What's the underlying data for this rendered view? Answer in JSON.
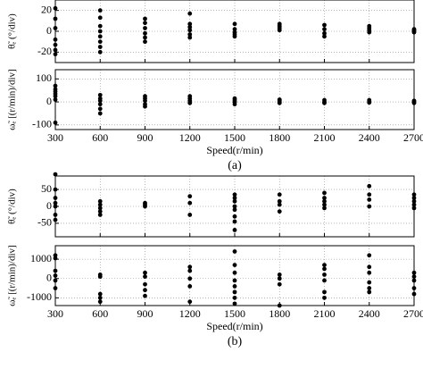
{
  "chart_data": [
    {
      "type": "scatter",
      "ylabel": "θ̃ₑ (°/div)",
      "color": "#000000",
      "grid": true,
      "xlim": [
        300,
        2700
      ],
      "xticks": [
        300,
        600,
        900,
        1200,
        1500,
        1800,
        2100,
        2400,
        2700
      ],
      "ylim": [
        -30,
        30
      ],
      "yticks": [
        -20,
        0,
        20
      ],
      "x": [
        300,
        300,
        300,
        300,
        300,
        300,
        300,
        600,
        600,
        600,
        600,
        600,
        600,
        600,
        600,
        900,
        900,
        900,
        900,
        900,
        900,
        1200,
        1200,
        1200,
        1200,
        1200,
        1200,
        1500,
        1500,
        1500,
        1500,
        1500,
        1800,
        1800,
        1800,
        1800,
        2100,
        2100,
        2100,
        2100,
        2400,
        2400,
        2400,
        2400,
        2700,
        2700,
        2700,
        2700
      ],
      "values": [
        22,
        12,
        3,
        -8,
        -13,
        -18,
        -22,
        20,
        13,
        5,
        0,
        -5,
        -10,
        -15,
        -20,
        12,
        8,
        3,
        -2,
        -6,
        -10,
        17,
        7,
        4,
        1,
        -3,
        -6,
        7,
        2,
        -1,
        -3,
        -5,
        7,
        5,
        3,
        1,
        6,
        2,
        -2,
        -5,
        5,
        3,
        1,
        -1,
        2,
        1,
        0,
        -1
      ]
    },
    {
      "type": "scatter",
      "ylabel": "ω̃ₑ [(r/min)/div]",
      "xlabel": "Speed(r/min)",
      "caption": "(a)",
      "color": "#000000",
      "grid": true,
      "xlim": [
        300,
        2700
      ],
      "xticks": [
        300,
        600,
        900,
        1200,
        1500,
        1800,
        2100,
        2400,
        2700
      ],
      "ylim": [
        -120,
        140
      ],
      "yticks": [
        -100,
        0,
        100
      ],
      "x": [
        300,
        300,
        300,
        300,
        300,
        300,
        300,
        600,
        600,
        600,
        600,
        600,
        600,
        900,
        900,
        900,
        900,
        900,
        1200,
        1200,
        1200,
        1200,
        1500,
        1500,
        1500,
        1500,
        1800,
        1800,
        1800,
        1800,
        2100,
        2100,
        2100,
        2400,
        2400,
        2400,
        2700,
        2700,
        2700
      ],
      "values": [
        70,
        55,
        45,
        35,
        25,
        10,
        -90,
        30,
        15,
        5,
        -10,
        -30,
        -50,
        25,
        15,
        5,
        -10,
        -20,
        25,
        15,
        5,
        -5,
        15,
        8,
        0,
        -10,
        10,
        5,
        0,
        -5,
        8,
        0,
        -5,
        8,
        2,
        -3,
        5,
        0,
        -5
      ]
    },
    {
      "type": "scatter",
      "ylabel": "θ̃ₑ (°/div)",
      "color": "#000000",
      "grid": true,
      "xlim": [
        300,
        2700
      ],
      "xticks": [
        300,
        600,
        900,
        1200,
        1500,
        1800,
        2100,
        2400,
        2700
      ],
      "ylim": [
        -90,
        90
      ],
      "yticks": [
        -50,
        0,
        50
      ],
      "x": [
        300,
        300,
        300,
        300,
        300,
        300,
        300,
        600,
        600,
        600,
        600,
        600,
        900,
        900,
        900,
        1200,
        1200,
        1200,
        1500,
        1500,
        1500,
        1500,
        1500,
        1500,
        1500,
        1500,
        1800,
        1800,
        1800,
        1800,
        2100,
        2100,
        2100,
        2100,
        2100,
        2400,
        2400,
        2400,
        2400,
        2700,
        2700,
        2700,
        2700,
        2700
      ],
      "values": [
        95,
        50,
        25,
        10,
        0,
        -25,
        -40,
        15,
        5,
        -5,
        -15,
        -25,
        10,
        5,
        0,
        30,
        10,
        -25,
        35,
        25,
        15,
        0,
        -10,
        -30,
        -45,
        -70,
        35,
        15,
        5,
        -15,
        40,
        25,
        15,
        5,
        -5,
        60,
        35,
        20,
        0,
        35,
        25,
        15,
        5,
        -5
      ]
    },
    {
      "type": "scatter",
      "ylabel": "ω̃ₑ [(r/min)/div]",
      "xlabel": "Speed(r/min)",
      "caption": "(b)",
      "color": "#000000",
      "grid": true,
      "xlim": [
        300,
        2700
      ],
      "xticks": [
        300,
        600,
        900,
        1200,
        1500,
        1800,
        2100,
        2400,
        2700
      ],
      "ylim": [
        -1400,
        1700
      ],
      "yticks": [
        -1000,
        0,
        1000
      ],
      "x": [
        300,
        300,
        300,
        300,
        300,
        300,
        600,
        600,
        600,
        600,
        600,
        900,
        900,
        900,
        900,
        900,
        1200,
        1200,
        1200,
        1200,
        1200,
        1500,
        1500,
        1500,
        1500,
        1500,
        1500,
        1500,
        1500,
        1800,
        1800,
        1800,
        1800,
        2100,
        2100,
        2100,
        2100,
        2100,
        2100,
        2400,
        2400,
        2400,
        2400,
        2400,
        2400,
        2700,
        2700,
        2700,
        2700,
        2700
      ],
      "values": [
        1200,
        1050,
        400,
        150,
        -100,
        -500,
        200,
        100,
        -800,
        -1000,
        -1200,
        300,
        100,
        -300,
        -600,
        -900,
        600,
        400,
        0,
        -400,
        -1200,
        1400,
        700,
        300,
        -100,
        -400,
        -700,
        -1000,
        -1300,
        200,
        0,
        -300,
        -1400,
        700,
        500,
        200,
        -100,
        -700,
        -1000,
        1200,
        600,
        300,
        -200,
        -500,
        -700,
        300,
        100,
        -100,
        -500,
        -800
      ]
    }
  ]
}
